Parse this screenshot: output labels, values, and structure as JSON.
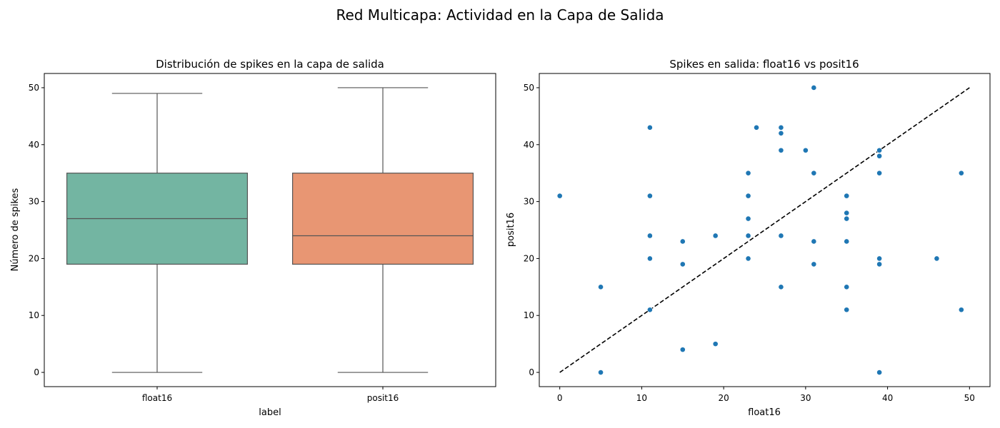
{
  "figure": {
    "title": "Red Multicapa: Actividad en la Capa de Salida"
  },
  "chart_data": [
    {
      "type": "box",
      "title": "Distribución de spikes en la capa de salida",
      "xlabel": "label",
      "ylabel": "Número de spikes",
      "categories": [
        "float16",
        "posit16"
      ],
      "boxes": [
        {
          "name": "float16",
          "min": 0,
          "q1": 19,
          "median": 27,
          "q3": 35,
          "max": 49,
          "color": "#73b5a2"
        },
        {
          "name": "posit16",
          "min": 0,
          "q1": 19,
          "median": 24,
          "q3": 35,
          "max": 50,
          "color": "#e89673"
        }
      ],
      "ylim": [
        -2.5,
        52.5
      ],
      "yticks": [
        0,
        10,
        20,
        30,
        40,
        50
      ],
      "grid": false
    },
    {
      "type": "scatter",
      "title": "Spikes en salida: float16 vs posit16",
      "xlabel": "float16",
      "ylabel": "posit16",
      "xlim": [
        -2.5,
        52.5
      ],
      "ylim": [
        -2.5,
        52.5
      ],
      "xticks": [
        0,
        10,
        20,
        30,
        40,
        50
      ],
      "yticks": [
        0,
        10,
        20,
        30,
        40,
        50
      ],
      "point_color": "#1f77b4",
      "reference_line": {
        "style": "dashed",
        "color": "#000000",
        "x": [
          0,
          50
        ],
        "y": [
          0,
          50
        ]
      },
      "points": [
        [
          0,
          31
        ],
        [
          5,
          15
        ],
        [
          5,
          0
        ],
        [
          11,
          43
        ],
        [
          11,
          31
        ],
        [
          11,
          24
        ],
        [
          11,
          20
        ],
        [
          11,
          11
        ],
        [
          15,
          23
        ],
        [
          15,
          19
        ],
        [
          15,
          4
        ],
        [
          19,
          24
        ],
        [
          19,
          5
        ],
        [
          23,
          35
        ],
        [
          23,
          31
        ],
        [
          23,
          27
        ],
        [
          23,
          24
        ],
        [
          23,
          20
        ],
        [
          24,
          43
        ],
        [
          27,
          43
        ],
        [
          27,
          42
        ],
        [
          27,
          39
        ],
        [
          27,
          24
        ],
        [
          27,
          15
        ],
        [
          30,
          39
        ],
        [
          31,
          50
        ],
        [
          31,
          35
        ],
        [
          31,
          23
        ],
        [
          31,
          19
        ],
        [
          35,
          31
        ],
        [
          35,
          28
        ],
        [
          35,
          27
        ],
        [
          35,
          23
        ],
        [
          35,
          15
        ],
        [
          35,
          11
        ],
        [
          39,
          39
        ],
        [
          39,
          38
        ],
        [
          39,
          35
        ],
        [
          39,
          20
        ],
        [
          39,
          19
        ],
        [
          39,
          0
        ],
        [
          46,
          20
        ],
        [
          49,
          35
        ],
        [
          49,
          11
        ]
      ],
      "grid": false
    }
  ]
}
